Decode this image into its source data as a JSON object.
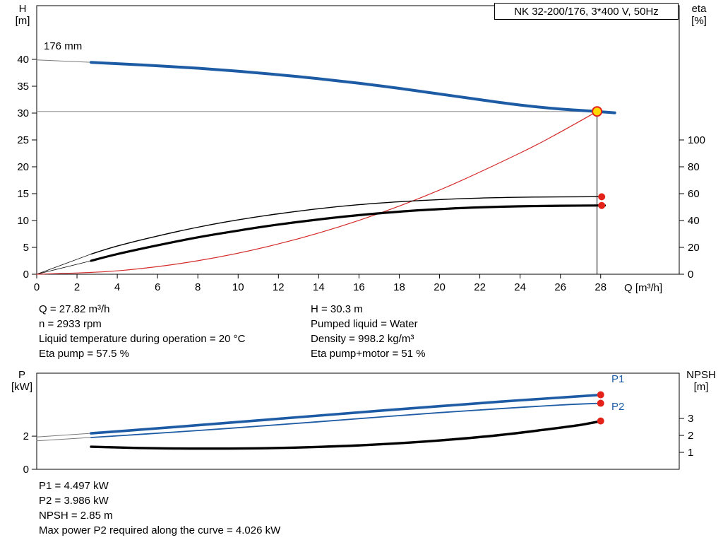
{
  "title_box": "NK 32-200/176, 3*400 V, 50Hz",
  "axis_titles": {
    "h_symbol": "H",
    "h_unit": "[m]",
    "eta_symbol": "eta",
    "eta_unit": "[%]",
    "q_label": "Q [m³/h]",
    "p_symbol": "P",
    "p_unit": "[kW]",
    "npsh_symbol": "NPSH",
    "npsh_unit": "[m]"
  },
  "annotations": {
    "impeller": "176 mm",
    "p1": "P1",
    "p2": "P2"
  },
  "info_panel": {
    "left": [
      "Q = 27.82 m³/h",
      "n = 2933 rpm",
      "Liquid temperature during operation = 20 °C",
      "Eta pump = 57.5 %"
    ],
    "right": [
      "H = 30.3 m",
      "Pumped liquid = Water",
      "Density = 998.2 kg/m³",
      "Eta pump+motor = 51 %"
    ]
  },
  "results_panel": [
    "P1 = 4.497 kW",
    "P2 = 3.986 kW",
    "NPSH = 2.85 m",
    "Max power P2 required along the curve = 4.026 kW"
  ],
  "chart_data": [
    {
      "type": "line",
      "title": "NK 32-200/176, 3*400 V, 50Hz",
      "xlabel": "Q [m³/h]",
      "ylabel_left": "H [m]",
      "ylabel_right": "eta [%]",
      "xlim": [
        0,
        31.9
      ],
      "ylim_left": [
        0,
        50
      ],
      "ylim_right": [
        0,
        200
      ],
      "x_ticks": [
        0,
        2,
        4,
        6,
        8,
        10,
        12,
        14,
        16,
        18,
        20,
        22,
        24,
        26,
        28
      ],
      "y_ticks_left": [
        0,
        5,
        10,
        15,
        20,
        25,
        30,
        35,
        40
      ],
      "y_ticks_right": [
        0,
        20,
        40,
        60,
        80,
        100
      ],
      "grid": false,
      "duty_point": {
        "Q_m3h": 27.82,
        "H_m": 30.3,
        "eta_pump_pct": 57.5,
        "eta_pump_motor_pct": 51
      },
      "guides": [
        {
          "x1": 0,
          "y1": 30.3,
          "x2": 27.82,
          "y2": 30.3,
          "axis": "left",
          "color": "#909090",
          "width": 1
        },
        {
          "x1": 27.82,
          "y1": 30.3,
          "x2": 27.82,
          "y2": 0,
          "axis": "left",
          "color": "#000000",
          "width": 1
        }
      ],
      "series": [
        {
          "name": "head-curve-leader",
          "axis": "left",
          "color": "#7a7a7a",
          "width": 1,
          "x": [
            0,
            2.7
          ],
          "y": [
            39.9,
            39.45
          ]
        },
        {
          "name": "eta-pump-leader",
          "axis": "right",
          "color": "#000000",
          "width": 0.8,
          "x": [
            0,
            2.7
          ],
          "y": [
            0,
            15
          ]
        },
        {
          "name": "eta-pump-motor-leader",
          "axis": "right",
          "color": "#000000",
          "width": 0.8,
          "x": [
            0,
            2.7
          ],
          "y": [
            0,
            10
          ]
        },
        {
          "name": "system-curve",
          "axis": "left",
          "color": "#d42a2a",
          "width": 1.2,
          "x": [
            0,
            4,
            8,
            12,
            16,
            20,
            24,
            26,
            27.82
          ],
          "y": [
            0,
            0.63,
            2.51,
            5.64,
            10.03,
            15.67,
            22.56,
            26.48,
            30.3
          ]
        },
        {
          "name": "eta-pump-curve",
          "axis": "right",
          "color": "#000000",
          "width": 1.4,
          "x": [
            2.7,
            4,
            6,
            8,
            10,
            12,
            14,
            16,
            18,
            20,
            22,
            24,
            26,
            28.2
          ],
          "y": [
            15,
            21,
            28.5,
            35,
            40.5,
            45,
            48.8,
            51.8,
            54,
            55.6,
            56.7,
            57.3,
            57.6,
            57.8
          ]
        },
        {
          "name": "eta-pump-motor-curve",
          "axis": "right",
          "color": "#000000",
          "width": 3.2,
          "x": [
            2.7,
            4,
            6,
            8,
            10,
            12,
            14,
            16,
            18,
            20,
            22,
            24,
            26,
            28.2
          ],
          "y": [
            10,
            15,
            21.5,
            27.5,
            32.5,
            37,
            40.8,
            44,
            46.6,
            48.5,
            49.8,
            50.6,
            51,
            51.2
          ]
        },
        {
          "name": "head-curve-176mm",
          "axis": "left",
          "color": "#1d5ba4",
          "width": 4,
          "x": [
            2.7,
            4,
            6,
            8,
            10,
            12,
            14,
            16,
            18,
            20,
            22,
            24,
            26,
            27.82,
            28.7
          ],
          "y": [
            39.45,
            39.2,
            38.8,
            38.35,
            37.8,
            37.15,
            36.4,
            35.55,
            34.6,
            33.55,
            32.5,
            31.5,
            30.75,
            30.3,
            30.05
          ]
        }
      ],
      "markers": [
        {
          "name": "eta-pump-end-dot",
          "x": 28.05,
          "y": 57.7,
          "axis": "right",
          "r": 5,
          "fill": "#e32219"
        },
        {
          "name": "eta-pump-motor-end-dot",
          "x": 28.05,
          "y": 51.2,
          "axis": "right",
          "r": 5,
          "fill": "#e32219"
        },
        {
          "name": "duty-point",
          "x": 27.82,
          "y": 30.3,
          "axis": "left",
          "r": 6.5,
          "fill": "#ffd900",
          "stroke": "#e32219",
          "stroke_width": 2
        }
      ]
    },
    {
      "type": "line",
      "title": "",
      "xlabel": "",
      "ylabel_left": "P [kW]",
      "ylabel_right": "NPSH [m]",
      "xlim": [
        0,
        31.9
      ],
      "ylim_left": [
        0,
        5.8
      ],
      "ylim_right": [
        0,
        5.67
      ],
      "x_ticks": [],
      "y_ticks_left": [
        0,
        2
      ],
      "y_ticks_right": [
        1,
        2,
        3
      ],
      "grid": false,
      "duty_point": {
        "P1_kW": 4.497,
        "P2_kW": 3.986,
        "NPSH_m": 2.85
      },
      "guides": [],
      "series": [
        {
          "name": "p1-leader",
          "axis": "left",
          "color": "#7a7a7a",
          "width": 1,
          "x": [
            0,
            2.7
          ],
          "y": [
            1.95,
            2.17
          ]
        },
        {
          "name": "p2-leader",
          "axis": "left",
          "color": "#7a7a7a",
          "width": 1,
          "x": [
            0,
            2.7
          ],
          "y": [
            1.72,
            1.92
          ]
        },
        {
          "name": "p2-curve",
          "axis": "left",
          "color": "#1d5ba4",
          "width": 1.8,
          "x": [
            2.7,
            5,
            8,
            11,
            14,
            17,
            20,
            23,
            26,
            28.1
          ],
          "y": [
            1.92,
            2.1,
            2.34,
            2.6,
            2.87,
            3.15,
            3.42,
            3.66,
            3.88,
            3.99
          ]
        },
        {
          "name": "p1-curve",
          "axis": "left",
          "color": "#1d5ba4",
          "width": 3.6,
          "x": [
            2.7,
            5,
            8,
            11,
            14,
            17,
            20,
            23,
            26,
            28.1
          ],
          "y": [
            2.17,
            2.38,
            2.66,
            2.95,
            3.24,
            3.53,
            3.81,
            4.08,
            4.33,
            4.5
          ]
        },
        {
          "name": "npsh-curve",
          "axis": "right",
          "color": "#000000",
          "width": 3.4,
          "x": [
            2.7,
            5,
            8,
            11,
            14,
            17,
            20,
            23,
            25.5,
            27,
            28.1
          ],
          "y": [
            1.33,
            1.26,
            1.22,
            1.24,
            1.32,
            1.47,
            1.7,
            2.02,
            2.38,
            2.62,
            2.87
          ]
        }
      ],
      "markers": [
        {
          "name": "p1-end-dot",
          "x": 28,
          "y": 4.497,
          "axis": "left",
          "r": 5,
          "fill": "#e32219"
        },
        {
          "name": "p2-end-dot",
          "x": 28,
          "y": 3.986,
          "axis": "left",
          "r": 5,
          "fill": "#e32219"
        },
        {
          "name": "npsh-end-dot",
          "x": 28,
          "y": 2.85,
          "axis": "right",
          "r": 5,
          "fill": "#e32219"
        }
      ]
    }
  ]
}
